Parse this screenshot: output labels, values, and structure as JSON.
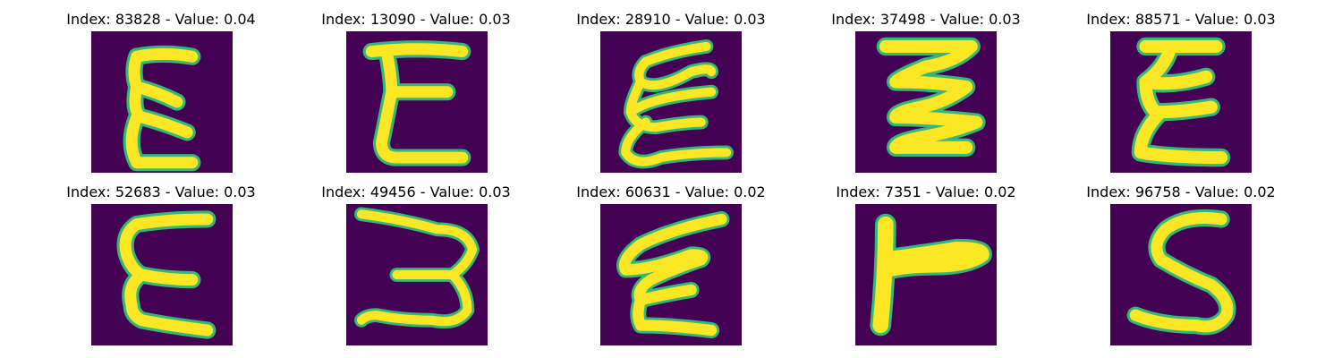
{
  "colors": {
    "background": "#440154",
    "stroke": "#fde725",
    "edge": "#35b779"
  },
  "panels": [
    {
      "index": "83828",
      "value": "0.04",
      "title": "Index: 83828 - Value: 0.04",
      "glyph": "E-like"
    },
    {
      "index": "13090",
      "value": "0.03",
      "title": "Index: 13090 - Value: 0.03",
      "glyph": "E-like"
    },
    {
      "index": "28910",
      "value": "0.03",
      "title": "Index: 28910 - Value: 0.03",
      "glyph": "E-like"
    },
    {
      "index": "37498",
      "value": "0.03",
      "title": "Index: 37498 - Value: 0.03",
      "glyph": "zigzag E"
    },
    {
      "index": "88571",
      "value": "0.03",
      "title": "Index: 88571 - Value: 0.03",
      "glyph": "E-like"
    },
    {
      "index": "52683",
      "value": "0.03",
      "title": "Index: 52683 - Value: 0.03",
      "glyph": "E-like"
    },
    {
      "index": "49456",
      "value": "0.03",
      "title": "Index: 49456 - Value: 0.03",
      "glyph": "3-like"
    },
    {
      "index": "60631",
      "value": "0.02",
      "title": "Index: 60631 - Value: 0.02",
      "glyph": "E-like"
    },
    {
      "index": "7351",
      "value": "0.02",
      "title": "Index: 7351 - Value: 0.02",
      "glyph": "F-like"
    },
    {
      "index": "96758",
      "value": "0.02",
      "title": "Index: 96758 - Value: 0.02",
      "glyph": "S-like"
    }
  ]
}
